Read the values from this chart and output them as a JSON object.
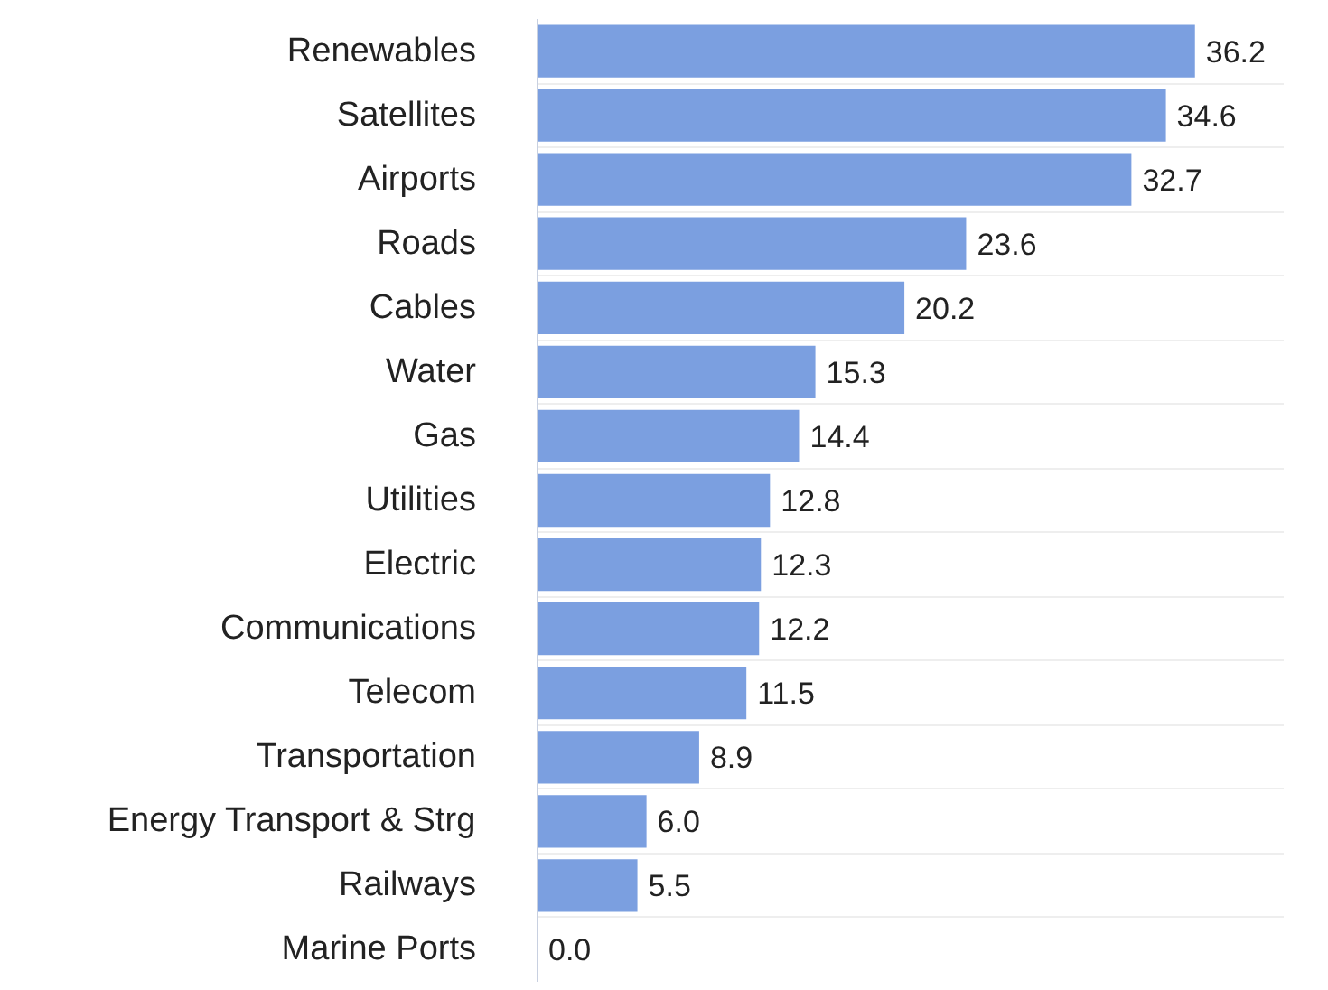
{
  "chart_data": {
    "type": "bar",
    "orientation": "horizontal",
    "categories": [
      "Renewables",
      "Satellites",
      "Airports",
      "Roads",
      "Cables",
      "Water",
      "Gas",
      "Utilities",
      "Electric",
      "Communications",
      "Telecom",
      "Transportation",
      "Energy Transport & Strg",
      "Railways",
      "Marine Ports"
    ],
    "values": [
      36.2,
      34.6,
      32.7,
      23.6,
      20.2,
      15.3,
      14.4,
      12.8,
      12.3,
      12.2,
      11.5,
      8.9,
      6.0,
      5.5,
      0.0
    ],
    "value_labels": [
      "36.2",
      "34.6",
      "32.7",
      "23.6",
      "20.2",
      "15.3",
      "14.4",
      "12.8",
      "12.3",
      "12.2",
      "11.5",
      "8.9",
      "6.0",
      "5.5",
      "0.0"
    ],
    "color": "#7b9fe0",
    "grid": "y"
  }
}
